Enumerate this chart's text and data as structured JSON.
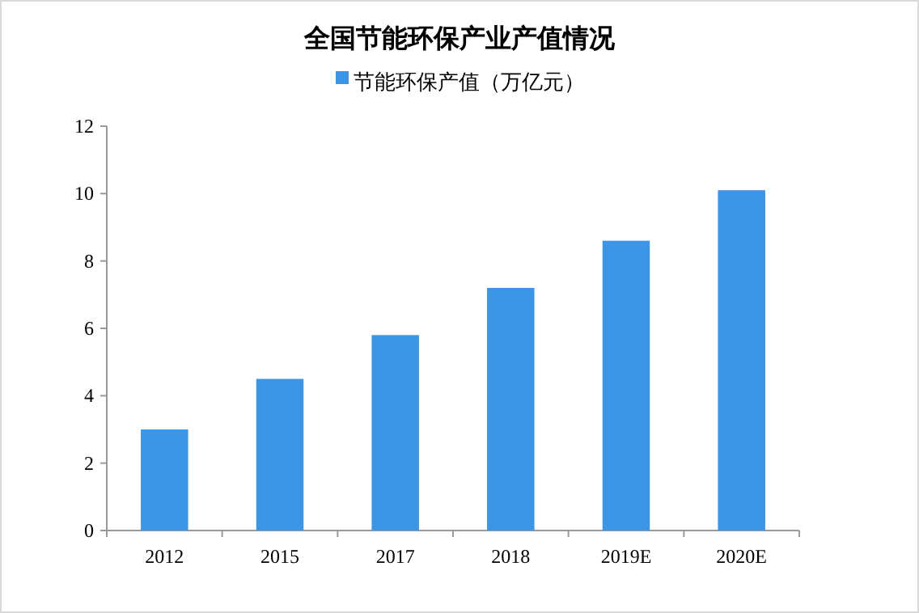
{
  "chart_data": {
    "type": "bar",
    "title": "全国节能环保产业产值情况",
    "categories": [
      "2012",
      "2015",
      "2017",
      "2018",
      "2019E",
      "2020E"
    ],
    "series": [
      {
        "name": "节能环保产值（万亿元）",
        "color": "#3d95e6",
        "values": [
          3.0,
          4.5,
          5.8,
          7.2,
          8.6,
          10.1
        ]
      }
    ],
    "ylim": [
      0,
      12
    ],
    "yticks": [
      0,
      2,
      4,
      6,
      8,
      10,
      12
    ],
    "grid": false,
    "legend": "top"
  }
}
